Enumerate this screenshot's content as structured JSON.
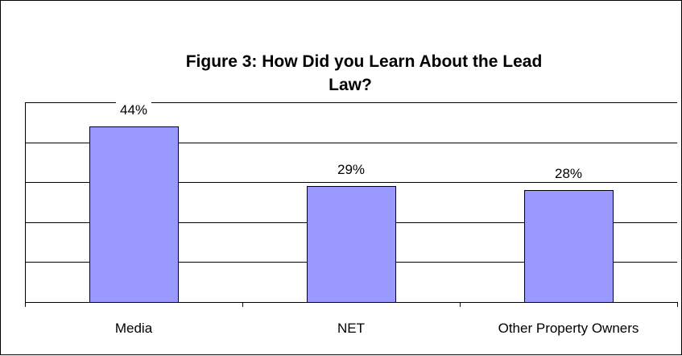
{
  "chart_data": {
    "type": "bar",
    "title_lines": [
      "Figure 3: How Did you Learn About the Lead",
      "Law?"
    ],
    "categories": [
      "Media",
      "NET",
      "Other Property Owners"
    ],
    "values": [
      44,
      29,
      28
    ],
    "data_labels": [
      "44%",
      "29%",
      "28%"
    ],
    "value_unit": "percent",
    "ylim": [
      0,
      50
    ],
    "grid": true,
    "legend": "none",
    "colors": {
      "bar_fill": "#9999ff",
      "bar_stroke": "#000000",
      "gridline": "#000000",
      "axis": "#000000"
    }
  }
}
